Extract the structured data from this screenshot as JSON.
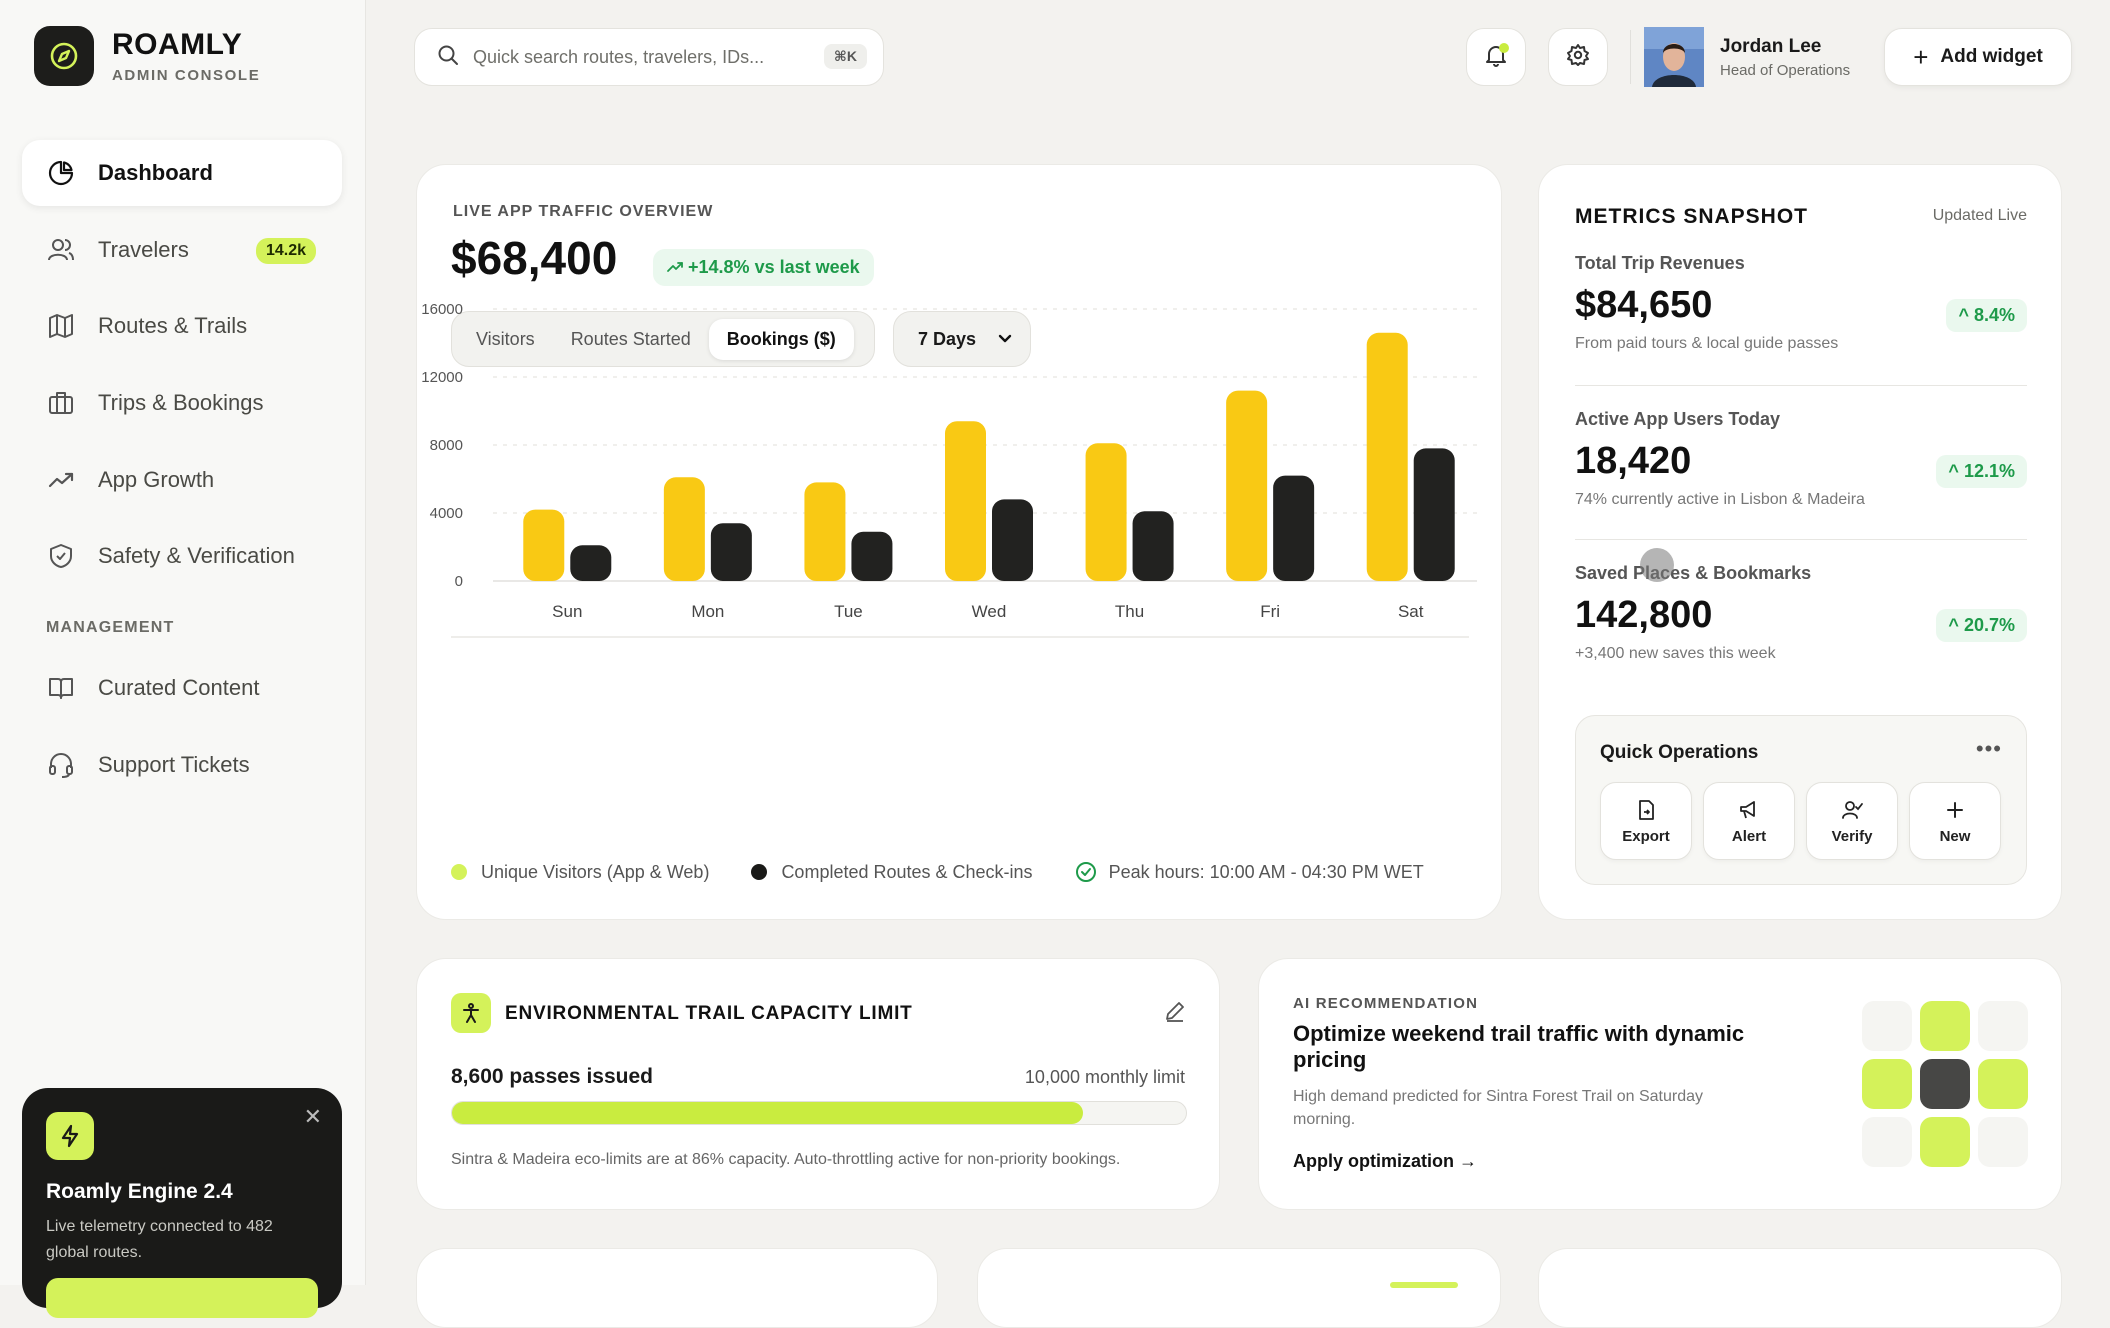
{
  "brand": {
    "name": "ROAMLY",
    "subtitle": "ADMIN CONSOLE"
  },
  "search": {
    "placeholder": "Quick search routes, travelers, IDs...",
    "shortcut": "⌘K"
  },
  "user": {
    "name": "Jordan Lee",
    "role": "Head of Operations"
  },
  "topbar": {
    "add_widget_label": "Add widget"
  },
  "sidebar": {
    "items": [
      {
        "label": "Dashboard",
        "icon": "pie-chart-icon",
        "active": true
      },
      {
        "label": "Travelers",
        "icon": "users-icon",
        "badge": "14.2k"
      },
      {
        "label": "Routes & Trails",
        "icon": "map-icon"
      },
      {
        "label": "Trips & Bookings",
        "icon": "briefcase-icon"
      },
      {
        "label": "App Growth",
        "icon": "trending-up-icon"
      },
      {
        "label": "Safety & Verification",
        "icon": "shield-check-icon"
      }
    ],
    "section_label": "MANAGEMENT",
    "management_items": [
      {
        "label": "Curated Content",
        "icon": "book-open-icon"
      },
      {
        "label": "Support Tickets",
        "icon": "headset-icon"
      }
    ]
  },
  "engine": {
    "title": "Roamly Engine 2.4",
    "description": "Live telemetry connected to 482 global routes."
  },
  "traffic": {
    "eyebrow": "LIVE APP TRAFFIC OVERVIEW",
    "value": "$68,400",
    "delta": "+14.8% vs last week",
    "tabs": [
      "Visitors",
      "Routes Started",
      "Bookings ($)"
    ],
    "active_tab": "Bookings ($)",
    "range": "7 Days",
    "legend": {
      "series_a": "Unique Visitors (App & Web)",
      "series_b": "Completed Routes & Check-ins",
      "peak": "Peak hours: 10:00 AM - 04:30 PM WET"
    }
  },
  "chart_data": {
    "type": "bar",
    "categories": [
      "Sun",
      "Mon",
      "Tue",
      "Wed",
      "Thu",
      "Fri",
      "Sat"
    ],
    "series": [
      {
        "name": "Unique Visitors (App & Web)",
        "color": "#f9c914",
        "values": [
          4200,
          6100,
          5800,
          9400,
          8100,
          11200,
          14600
        ]
      },
      {
        "name": "Completed Routes & Check-ins",
        "color": "#222220",
        "values": [
          2100,
          3400,
          2900,
          4800,
          4100,
          6200,
          7800
        ]
      }
    ],
    "ylim": [
      0,
      16000
    ],
    "yticks": [
      0,
      4000,
      8000,
      12000,
      16000
    ],
    "grid": true,
    "legend": "bottom"
  },
  "metrics": {
    "title": "METRICS SNAPSHOT",
    "updated": "Updated Live",
    "items": [
      {
        "label": "Total Trip Revenues",
        "value": "$84,650",
        "delta": "8.4%",
        "sub": "From paid tours & local guide passes"
      },
      {
        "label": "Active App Users Today",
        "value": "18,420",
        "delta": "12.1%",
        "sub": "74% currently active in Lisbon & Madeira"
      },
      {
        "label": "Saved Places & Bookmarks",
        "value": "142,800",
        "delta": "20.7%",
        "sub": "+3,400 new saves this week"
      }
    ],
    "quick_ops": {
      "title": "Quick Operations",
      "buttons": [
        "Export",
        "Alert",
        "Verify",
        "New"
      ]
    }
  },
  "capacity": {
    "title": "ENVIRONMENTAL TRAIL CAPACITY LIMIT",
    "issued": "8,600 passes issued",
    "limit": "10,000 monthly limit",
    "fill_fraction": 0.86,
    "note": "Sintra & Madeira eco-limits are at 86% capacity. Auto-throttling active for non-priority bookings."
  },
  "ai": {
    "eyebrow": "AI RECOMMENDATION",
    "title": "Optimize weekend trail traffic with dynamic pricing",
    "description": "High demand predicted for Sintra Forest Trail on Saturday morning.",
    "link": "Apply optimization →"
  },
  "colors": {
    "accent": "#d4f25a",
    "primary_bar": "#f9c914",
    "dark": "#1a1a18",
    "positive": "#1e9a4a"
  }
}
